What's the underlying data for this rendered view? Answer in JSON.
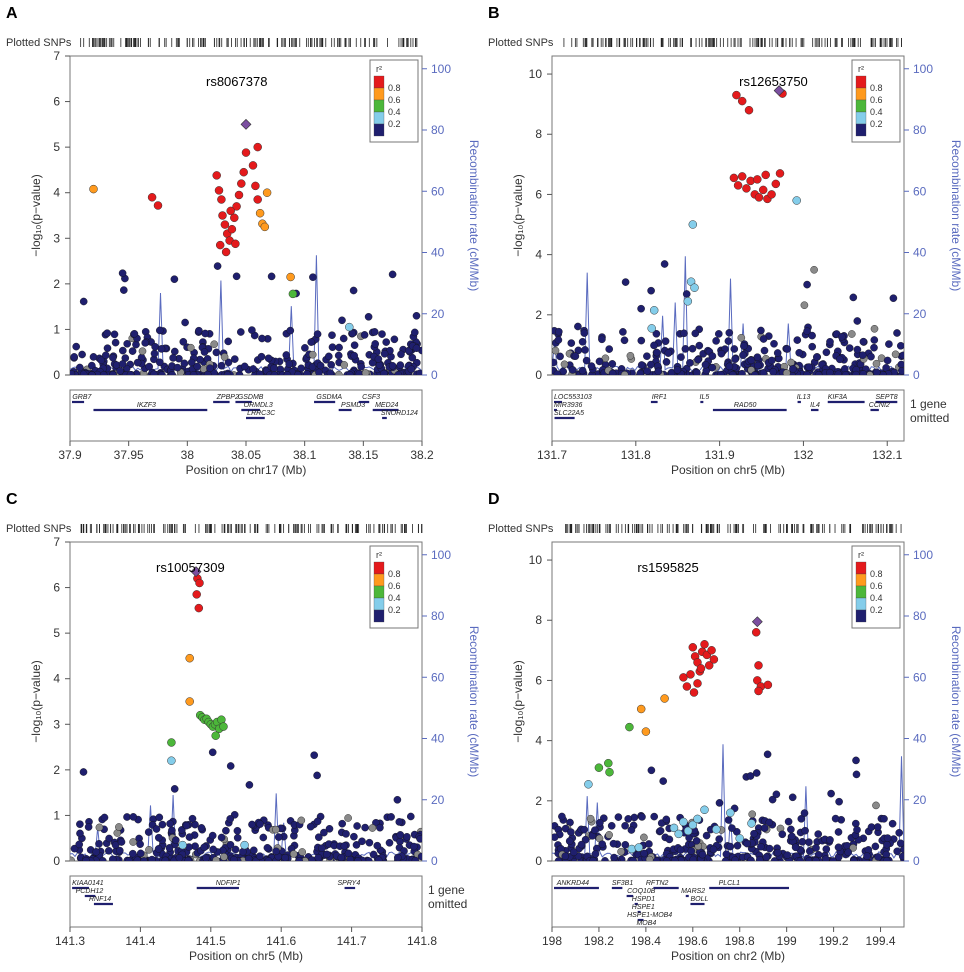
{
  "figure": {
    "legend_title": "r²",
    "legend_bins": [
      "0.8",
      "0.6",
      "0.4",
      "0.2"
    ],
    "legend_colors": [
      "#e41a1c",
      "#ff9a1e",
      "#4cb73a",
      "#84cdea",
      "#1f1f6e"
    ],
    "lead_color": "#7b4fa0",
    "gray_color": "#8a8a8a",
    "recomb_color": "#5a6bbf",
    "plotted_snps_label": "Plotted SNPs",
    "ylabel": "−log₁₀(p−value)",
    "y2label": "Recombination rate (cM/Mb)"
  },
  "chart_data": [
    {
      "panel": "A",
      "type": "scatter",
      "title": "rs8067378",
      "xlabel": "Position on chr17 (Mb)",
      "xlim": [
        37.9,
        38.2
      ],
      "xticks": [
        "37.9",
        "37.95",
        "38",
        "38.05",
        "38.1",
        "38.15",
        "38.2"
      ],
      "ylim": [
        0,
        7
      ],
      "yticks": [
        "0",
        "1",
        "2",
        "3",
        "4",
        "5",
        "6",
        "7"
      ],
      "y2ticks": [
        "0",
        "20",
        "40",
        "60",
        "80",
        "100"
      ],
      "lead": {
        "x": 38.05,
        "y": 5.5
      },
      "highlighted": [
        {
          "x": 37.92,
          "y": 4.08,
          "r2": 0.7
        },
        {
          "x": 37.97,
          "y": 3.9,
          "r2": 0.9
        },
        {
          "x": 37.975,
          "y": 3.72,
          "r2": 0.9
        },
        {
          "x": 38.025,
          "y": 4.38,
          "r2": 0.9
        },
        {
          "x": 38.027,
          "y": 4.05,
          "r2": 0.9
        },
        {
          "x": 38.029,
          "y": 3.85,
          "r2": 0.9
        },
        {
          "x": 38.03,
          "y": 3.5,
          "r2": 0.9
        },
        {
          "x": 38.032,
          "y": 3.3,
          "r2": 0.9
        },
        {
          "x": 38.034,
          "y": 3.1,
          "r2": 0.9
        },
        {
          "x": 38.036,
          "y": 2.95,
          "r2": 0.9
        },
        {
          "x": 38.038,
          "y": 3.2,
          "r2": 0.9
        },
        {
          "x": 38.04,
          "y": 3.45,
          "r2": 0.9
        },
        {
          "x": 38.042,
          "y": 3.7,
          "r2": 0.9
        },
        {
          "x": 38.044,
          "y": 3.95,
          "r2": 0.9
        },
        {
          "x": 38.046,
          "y": 4.2,
          "r2": 0.9
        },
        {
          "x": 38.048,
          "y": 4.45,
          "r2": 0.9
        },
        {
          "x": 38.05,
          "y": 4.88,
          "r2": 0.9
        },
        {
          "x": 38.028,
          "y": 2.85,
          "r2": 0.9
        },
        {
          "x": 38.033,
          "y": 2.7,
          "r2": 0.9
        },
        {
          "x": 38.037,
          "y": 3.6,
          "r2": 0.9
        },
        {
          "x": 38.041,
          "y": 2.88,
          "r2": 0.9
        },
        {
          "x": 38.056,
          "y": 4.6,
          "r2": 0.9
        },
        {
          "x": 38.058,
          "y": 4.15,
          "r2": 0.9
        },
        {
          "x": 38.06,
          "y": 3.85,
          "r2": 0.9
        },
        {
          "x": 38.062,
          "y": 3.55,
          "r2": 0.7
        },
        {
          "x": 38.064,
          "y": 3.32,
          "r2": 0.7
        },
        {
          "x": 38.066,
          "y": 3.25,
          "r2": 0.7
        },
        {
          "x": 38.068,
          "y": 4.0,
          "r2": 0.7
        },
        {
          "x": 38.06,
          "y": 5.0,
          "r2": 0.9
        },
        {
          "x": 38.088,
          "y": 2.15,
          "r2": 0.7
        },
        {
          "x": 38.09,
          "y": 1.78,
          "r2": 0.5
        },
        {
          "x": 38.138,
          "y": 1.05,
          "r2": 0.3
        }
      ],
      "genes": [
        {
          "label": "GRB7",
          "row": 0,
          "x": 37.902,
          "start": 37.9,
          "end": 37.912
        },
        {
          "label": "IKZF3",
          "row": 1,
          "x": 37.957,
          "start": 37.92,
          "end": 38.017
        },
        {
          "label": "ZPBP2",
          "row": 0,
          "x": 38.025,
          "start": 38.022,
          "end": 38.036
        },
        {
          "label": "GSDMB",
          "row": 0,
          "x": 38.043,
          "start": 38.041,
          "end": 38.055
        },
        {
          "label": "ORMDL3",
          "row": 1,
          "x": 38.048,
          "start": 38.046,
          "end": 38.062
        },
        {
          "label": "LRRC3C",
          "row": 2,
          "x": 38.051,
          "start": 38.05,
          "end": 38.066
        },
        {
          "label": "GSDMA",
          "row": 0,
          "x": 38.11,
          "start": 38.108,
          "end": 38.126
        },
        {
          "label": "PSMD3",
          "row": 1,
          "x": 38.131,
          "start": 38.129,
          "end": 38.14
        },
        {
          "label": "CSF3",
          "row": 0,
          "x": 38.149,
          "start": 38.146,
          "end": 38.155
        },
        {
          "label": "MED24",
          "row": 1,
          "x": 38.16,
          "start": 38.158,
          "end": 38.18
        },
        {
          "label": "SNORD124",
          "row": 2,
          "x": 38.165,
          "start": 38.166,
          "end": 38.17
        }
      ]
    },
    {
      "panel": "B",
      "type": "scatter",
      "title": "rs12653750",
      "xlabel": "Position on chr5 (Mb)",
      "xlim": [
        131.7,
        132.12
      ],
      "xticks": [
        "131.7",
        "131.8",
        "131.9",
        "132",
        "132.1"
      ],
      "ylim": [
        0,
        10.6
      ],
      "yticks": [
        "0",
        "2",
        "4",
        "6",
        "8",
        "10"
      ],
      "y2ticks": [
        "0",
        "20",
        "40",
        "60",
        "80",
        "100"
      ],
      "lead": {
        "x": 131.971,
        "y": 9.45
      },
      "highlighted": [
        {
          "x": 131.92,
          "y": 9.3,
          "r2": 0.9
        },
        {
          "x": 131.927,
          "y": 9.1,
          "r2": 0.9
        },
        {
          "x": 131.935,
          "y": 8.8,
          "r2": 0.9
        },
        {
          "x": 131.975,
          "y": 9.35,
          "r2": 0.9
        },
        {
          "x": 131.917,
          "y": 6.55,
          "r2": 0.9
        },
        {
          "x": 131.922,
          "y": 6.3,
          "r2": 0.9
        },
        {
          "x": 131.927,
          "y": 6.6,
          "r2": 0.9
        },
        {
          "x": 131.932,
          "y": 6.2,
          "r2": 0.9
        },
        {
          "x": 131.937,
          "y": 6.45,
          "r2": 0.9
        },
        {
          "x": 131.942,
          "y": 6.0,
          "r2": 0.9
        },
        {
          "x": 131.947,
          "y": 5.9,
          "r2": 0.9
        },
        {
          "x": 131.952,
          "y": 6.15,
          "r2": 0.9
        },
        {
          "x": 131.957,
          "y": 5.85,
          "r2": 0.9
        },
        {
          "x": 131.962,
          "y": 6.0,
          "r2": 0.9
        },
        {
          "x": 131.967,
          "y": 6.35,
          "r2": 0.9
        },
        {
          "x": 131.972,
          "y": 6.7,
          "r2": 0.9
        },
        {
          "x": 131.945,
          "y": 6.5,
          "r2": 0.9
        },
        {
          "x": 131.955,
          "y": 6.65,
          "r2": 0.9
        },
        {
          "x": 131.992,
          "y": 5.8,
          "r2": 0.3
        },
        {
          "x": 131.868,
          "y": 5.0,
          "r2": 0.3
        },
        {
          "x": 131.866,
          "y": 3.1,
          "r2": 0.3
        },
        {
          "x": 131.87,
          "y": 2.9,
          "r2": 0.3
        },
        {
          "x": 131.862,
          "y": 2.45,
          "r2": 0.3
        },
        {
          "x": 131.822,
          "y": 2.15,
          "r2": 0.3
        },
        {
          "x": 131.819,
          "y": 1.55,
          "r2": 0.3
        }
      ],
      "genes": [
        {
          "label": "LOC553103",
          "row": 0,
          "x": 131.7,
          "start": 131.701,
          "end": 131.712
        },
        {
          "label": "MIR3936",
          "row": 1,
          "x": 131.7,
          "start": 131.702,
          "end": 131.703
        },
        {
          "label": "SLC22A5",
          "row": 2,
          "x": 131.7,
          "start": 131.703,
          "end": 131.727
        },
        {
          "label": "IRF1",
          "row": 0,
          "x": 131.819,
          "start": 131.818,
          "end": 131.826
        },
        {
          "label": "IL5",
          "row": 0,
          "x": 131.876,
          "start": 131.877,
          "end": 131.88
        },
        {
          "label": "RAD50",
          "row": 1,
          "x": 131.917,
          "start": 131.892,
          "end": 131.98
        },
        {
          "label": "IL13",
          "row": 0,
          "x": 131.992,
          "start": 131.993,
          "end": 131.997
        },
        {
          "label": "IL4",
          "row": 1,
          "x": 132.008,
          "start": 132.009,
          "end": 132.018
        },
        {
          "label": "KIF3A",
          "row": 0,
          "x": 132.029,
          "start": 132.029,
          "end": 132.073
        },
        {
          "label": "SEPT8",
          "row": 0,
          "x": 132.086,
          "start": 132.086,
          "end": 132.112
        },
        {
          "label": "CCNI2",
          "row": 1,
          "x": 132.078,
          "start": 132.08,
          "end": 132.09
        }
      ],
      "note": [
        "1 gene",
        "omitted"
      ]
    },
    {
      "panel": "C",
      "type": "scatter",
      "title": "rs10057309",
      "xlabel": "Position on chr5 (Mb)",
      "xlim": [
        141.3,
        141.8
      ],
      "xticks": [
        "141.3",
        "141.4",
        "141.5",
        "141.6",
        "141.7",
        "141.8"
      ],
      "ylim": [
        0,
        7
      ],
      "yticks": [
        "0",
        "1",
        "2",
        "3",
        "4",
        "5",
        "6",
        "7"
      ],
      "y2ticks": [
        "0",
        "20",
        "40",
        "60",
        "80",
        "100"
      ],
      "lead": {
        "x": 141.479,
        "y": 6.35
      },
      "highlighted": [
        {
          "x": 141.481,
          "y": 6.2,
          "r2": 0.9
        },
        {
          "x": 141.484,
          "y": 6.1,
          "r2": 0.9
        },
        {
          "x": 141.48,
          "y": 5.85,
          "r2": 0.9
        },
        {
          "x": 141.483,
          "y": 5.55,
          "r2": 0.9
        },
        {
          "x": 141.47,
          "y": 4.45,
          "r2": 0.7
        },
        {
          "x": 141.47,
          "y": 3.5,
          "r2": 0.7
        },
        {
          "x": 141.485,
          "y": 3.2,
          "r2": 0.5
        },
        {
          "x": 141.488,
          "y": 3.15,
          "r2": 0.5
        },
        {
          "x": 141.491,
          "y": 3.1,
          "r2": 0.5
        },
        {
          "x": 141.494,
          "y": 3.12,
          "r2": 0.5
        },
        {
          "x": 141.497,
          "y": 3.05,
          "r2": 0.5
        },
        {
          "x": 141.5,
          "y": 3.0,
          "r2": 0.5
        },
        {
          "x": 141.503,
          "y": 2.95,
          "r2": 0.5
        },
        {
          "x": 141.506,
          "y": 3.0,
          "r2": 0.5
        },
        {
          "x": 141.509,
          "y": 3.05,
          "r2": 0.5
        },
        {
          "x": 141.512,
          "y": 2.9,
          "r2": 0.5
        },
        {
          "x": 141.515,
          "y": 3.1,
          "r2": 0.5
        },
        {
          "x": 141.518,
          "y": 2.95,
          "r2": 0.5
        },
        {
          "x": 141.507,
          "y": 2.75,
          "r2": 0.5
        },
        {
          "x": 141.444,
          "y": 2.6,
          "r2": 0.5
        },
        {
          "x": 141.444,
          "y": 2.2,
          "r2": 0.3
        },
        {
          "x": 141.46,
          "y": 0.35,
          "r2": 0.3
        },
        {
          "x": 141.548,
          "y": 0.35,
          "r2": 0.3
        }
      ],
      "genes": [
        {
          "label": "KIAA0141",
          "row": 0,
          "x": 141.303,
          "start": 141.303,
          "end": 141.327
        },
        {
          "label": "PCDH12",
          "row": 1,
          "x": 141.308,
          "start": 141.321,
          "end": 141.336
        },
        {
          "label": "RNF14",
          "row": 2,
          "x": 141.327,
          "start": 141.334,
          "end": 141.361
        },
        {
          "label": "NDFIP1",
          "row": 0,
          "x": 141.507,
          "start": 141.48,
          "end": 141.54
        },
        {
          "label": "SPRY4",
          "row": 0,
          "x": 141.68,
          "start": 141.69,
          "end": 141.705
        }
      ],
      "note": [
        "1 gene",
        "omitted"
      ]
    },
    {
      "panel": "D",
      "type": "scatter",
      "title": "rs1595825",
      "xlabel": "Position on chr2 (Mb)",
      "xlim": [
        198.0,
        199.5
      ],
      "xticks": [
        "198",
        "198.2",
        "198.4",
        "198.6",
        "198.8",
        "199",
        "199.2",
        "199.4"
      ],
      "ylim": [
        0,
        10.6
      ],
      "yticks": [
        "0",
        "2",
        "4",
        "6",
        "8",
        "10"
      ],
      "y2ticks": [
        "0",
        "20",
        "40",
        "60",
        "80",
        "100"
      ],
      "lead": {
        "x": 198.875,
        "y": 7.95
      },
      "highlighted": [
        {
          "x": 198.6,
          "y": 7.1,
          "r2": 0.9
        },
        {
          "x": 198.61,
          "y": 6.8,
          "r2": 0.9
        },
        {
          "x": 198.62,
          "y": 6.6,
          "r2": 0.9
        },
        {
          "x": 198.63,
          "y": 6.3,
          "r2": 0.9
        },
        {
          "x": 198.64,
          "y": 6.95,
          "r2": 0.9
        },
        {
          "x": 198.65,
          "y": 7.2,
          "r2": 0.9
        },
        {
          "x": 198.66,
          "y": 6.85,
          "r2": 0.9
        },
        {
          "x": 198.67,
          "y": 6.5,
          "r2": 0.9
        },
        {
          "x": 198.68,
          "y": 7.0,
          "r2": 0.9
        },
        {
          "x": 198.69,
          "y": 6.7,
          "r2": 0.9
        },
        {
          "x": 198.56,
          "y": 6.1,
          "r2": 0.9
        },
        {
          "x": 198.575,
          "y": 5.8,
          "r2": 0.9
        },
        {
          "x": 198.59,
          "y": 6.2,
          "r2": 0.9
        },
        {
          "x": 198.605,
          "y": 5.6,
          "r2": 0.9
        },
        {
          "x": 198.62,
          "y": 5.9,
          "r2": 0.9
        },
        {
          "x": 198.635,
          "y": 6.4,
          "r2": 0.9
        },
        {
          "x": 198.87,
          "y": 7.6,
          "r2": 0.9
        },
        {
          "x": 198.88,
          "y": 6.5,
          "r2": 0.9
        },
        {
          "x": 198.875,
          "y": 6.0,
          "r2": 0.9
        },
        {
          "x": 198.89,
          "y": 5.8,
          "r2": 0.9
        },
        {
          "x": 198.92,
          "y": 5.85,
          "r2": 0.9
        },
        {
          "x": 198.88,
          "y": 5.65,
          "r2": 0.9
        },
        {
          "x": 198.48,
          "y": 5.4,
          "r2": 0.7
        },
        {
          "x": 198.38,
          "y": 5.05,
          "r2": 0.7
        },
        {
          "x": 198.4,
          "y": 4.3,
          "r2": 0.7
        },
        {
          "x": 198.33,
          "y": 4.45,
          "r2": 0.5
        },
        {
          "x": 198.24,
          "y": 3.25,
          "r2": 0.5
        },
        {
          "x": 198.245,
          "y": 2.95,
          "r2": 0.5
        },
        {
          "x": 198.2,
          "y": 3.1,
          "r2": 0.5
        },
        {
          "x": 198.155,
          "y": 2.55,
          "r2": 0.3
        },
        {
          "x": 198.34,
          "y": 0.4,
          "r2": 0.3
        },
        {
          "x": 198.37,
          "y": 0.45,
          "r2": 0.3
        },
        {
          "x": 198.52,
          "y": 1.1,
          "r2": 0.3
        },
        {
          "x": 198.54,
          "y": 0.9,
          "r2": 0.3
        },
        {
          "x": 198.56,
          "y": 1.3,
          "r2": 0.3
        },
        {
          "x": 198.58,
          "y": 1.0,
          "r2": 0.3
        },
        {
          "x": 198.6,
          "y": 1.2,
          "r2": 0.3
        },
        {
          "x": 198.62,
          "y": 1.4,
          "r2": 0.3
        },
        {
          "x": 198.65,
          "y": 1.7,
          "r2": 0.3
        },
        {
          "x": 198.7,
          "y": 1.05,
          "r2": 0.3
        },
        {
          "x": 198.76,
          "y": 1.6,
          "r2": 0.3
        },
        {
          "x": 198.8,
          "y": 0.75,
          "r2": 0.3
        },
        {
          "x": 198.85,
          "y": 1.25,
          "r2": 0.3
        }
      ],
      "genes": [
        {
          "label": "ANKRD44",
          "row": 0,
          "x": 198.02,
          "start": 198.0,
          "end": 198.2
        },
        {
          "label": "SF3B1",
          "row": 0,
          "x": 198.255,
          "start": 198.255,
          "end": 198.3
        },
        {
          "label": "COQ10B",
          "row": 1,
          "x": 198.32,
          "start": 198.318,
          "end": 198.346
        },
        {
          "label": "HSPD1",
          "row": 2,
          "x": 198.34,
          "start": 198.352,
          "end": 198.366
        },
        {
          "label": "HSPE1",
          "row": 3,
          "x": 198.34,
          "start": 198.365,
          "end": 198.368
        },
        {
          "label": "HSPE1-MOB4",
          "row": 4,
          "x": 198.32,
          "start": 198.365,
          "end": 198.39
        },
        {
          "label": "MOB4",
          "row": 5,
          "x": 198.36,
          "start": 198.38,
          "end": 198.41
        },
        {
          "label": "RFTN2",
          "row": 0,
          "x": 198.4,
          "start": 198.432,
          "end": 198.54
        },
        {
          "label": "MARS2",
          "row": 1,
          "x": 198.55,
          "start": 198.57,
          "end": 198.572
        },
        {
          "label": "BOLL",
          "row": 2,
          "x": 198.59,
          "start": 198.59,
          "end": 198.65
        },
        {
          "label": "PLCL1",
          "row": 0,
          "x": 198.71,
          "start": 198.67,
          "end": 199.01
        }
      ]
    }
  ]
}
